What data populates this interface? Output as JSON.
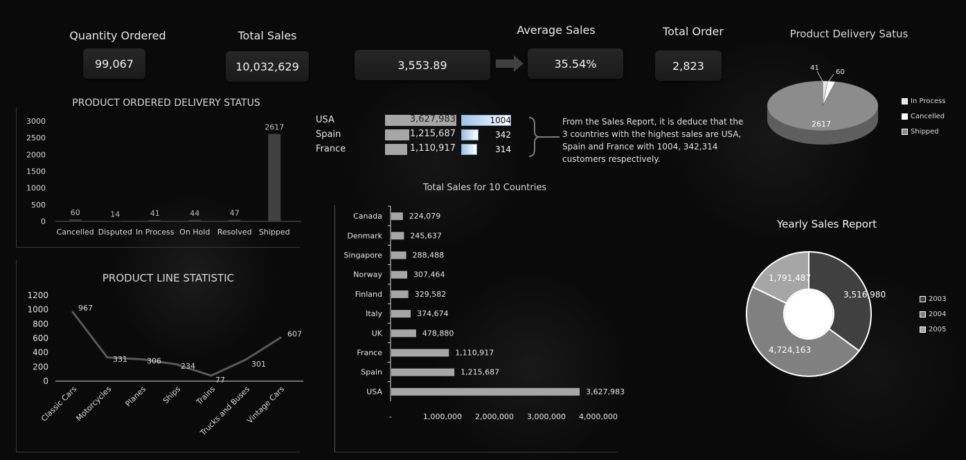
{
  "kpis": {
    "quantity_ordered": {
      "label": "Quantity Ordered",
      "value": "99,067"
    },
    "total_sales": {
      "label": "Total Sales",
      "value": "10,032,629"
    },
    "average_sales": {
      "label": "Average Sales",
      "value": "3,553.89",
      "percent": "35.54%"
    },
    "total_order": {
      "label": "Total Order",
      "value": "2,823"
    }
  },
  "top_countries": {
    "rows": [
      {
        "country": "USA",
        "sales": "3,627,983",
        "sales_value": 3627983,
        "customers": "1004",
        "customers_value": 1004
      },
      {
        "country": "Spain",
        "sales": "1,215,687",
        "sales_value": 1215687,
        "customers": "342",
        "customers_value": 342
      },
      {
        "country": "France",
        "sales": "1,110,917",
        "sales_value": 1110917,
        "customers": "314",
        "customers_value": 314
      }
    ],
    "note": "From the Sales Report, it is deduce that  the 3  countries with the highest sales are USA, Spain and France with  1004, 342,314 customers respectively."
  },
  "colors": {
    "bar": "#a6a6a6",
    "shipped_bar": "#404040",
    "line": "#595959",
    "gradient_blue": "#9dc3e6"
  },
  "chart_data": [
    {
      "id": "delivery_status_bar",
      "type": "bar",
      "title": "PRODUCT ORDERED DELIVERY STATUS",
      "categories": [
        "Cancelled",
        "Disputed",
        "In Process",
        "On Hold",
        "Resolved",
        "Shipped"
      ],
      "values": [
        60,
        14,
        41,
        44,
        47,
        2617
      ],
      "yticks": [
        "0",
        "500",
        "1000",
        "1500",
        "2000",
        "2500",
        "3000"
      ],
      "ylim": [
        0,
        3000
      ]
    },
    {
      "id": "product_line_line",
      "type": "line",
      "title": "PRODUCT LINE STATISTIC",
      "categories": [
        "Classic Cars",
        "Motorcycles",
        "Planes",
        "Ships",
        "Trains",
        "Trucks and Buses",
        "Vintage Cars"
      ],
      "values": [
        967,
        331,
        306,
        234,
        77,
        301,
        607
      ],
      "yticks": [
        "0",
        "200",
        "400",
        "600",
        "800",
        "1000",
        "1200"
      ],
      "ylim": [
        0,
        1200
      ]
    },
    {
      "id": "country_sales_bar",
      "type": "bar",
      "orientation": "horizontal",
      "title": "Total Sales for 10 Countries",
      "categories": [
        "Canada",
        "Denmark",
        "Singapore",
        "Norway",
        "Finland",
        "Italy",
        "UK",
        "France",
        "Spain",
        "USA"
      ],
      "values": [
        224079,
        245637,
        288488,
        307464,
        329582,
        374674,
        478880,
        1110917,
        1215687,
        3627983
      ],
      "labels": [
        "224,079",
        "245,637",
        "288,488",
        "307,464",
        "329,582",
        "374,674",
        "478,880",
        "1,110,917",
        "1,215,687",
        "3,627,983"
      ],
      "xticks": [
        "-",
        "1,000,000",
        "2,000,000",
        "3,000,000",
        "4,000,000"
      ],
      "xlim": [
        0,
        4000000
      ]
    },
    {
      "id": "delivery_pie",
      "type": "pie",
      "title": "Product Delivery Satus",
      "labels": [
        "In Process",
        "Cancelled",
        "Shipped"
      ],
      "values": [
        41,
        60,
        2617
      ],
      "value_labels": [
        "41",
        "60",
        "2617"
      ],
      "legend_position": "right"
    },
    {
      "id": "yearly_donut",
      "type": "pie",
      "title": "Yearly Sales Report",
      "labels": [
        "2003",
        "2004",
        "2005"
      ],
      "values": [
        3516980,
        4724163,
        1791487
      ],
      "value_labels": [
        "3,516,980",
        "4,724,163",
        "1,791,487"
      ],
      "colors": [
        "#404040",
        "#808080",
        "#a6a6a6"
      ],
      "legend_position": "right"
    }
  ]
}
